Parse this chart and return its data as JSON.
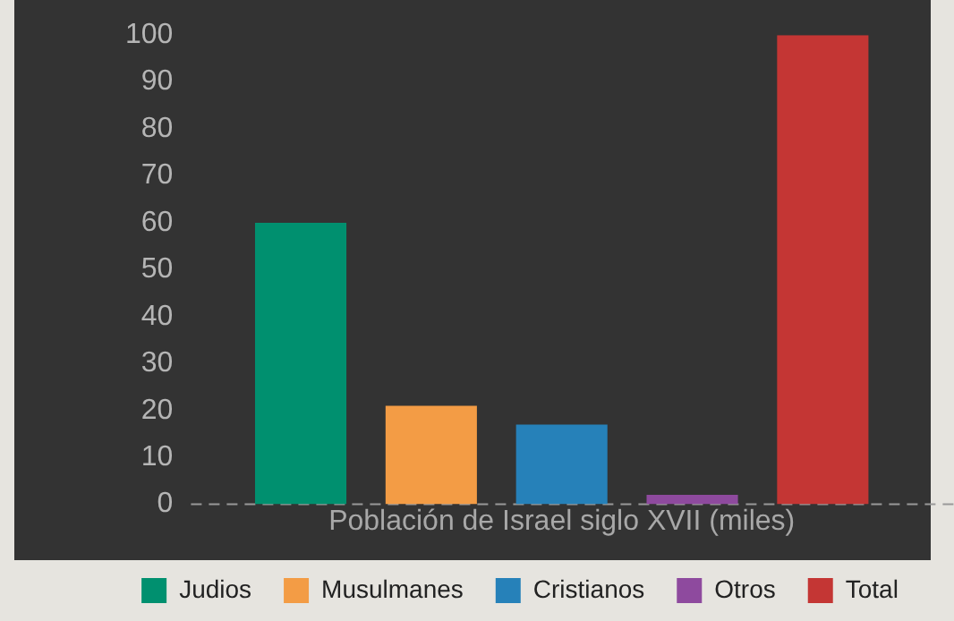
{
  "chart_data": {
    "type": "bar",
    "xlabel": "Población de Israel siglo XVII (miles)",
    "categories": [
      null
    ],
    "series": [
      {
        "name": "Judios",
        "color": "#00906f",
        "values": [
          60
        ]
      },
      {
        "name": "Musulmanes",
        "color": "#f39c45",
        "values": [
          21
        ]
      },
      {
        "name": "Cristianos",
        "color": "#2681b9",
        "values": [
          17
        ]
      },
      {
        "name": "Otros",
        "color": "#8e4a9e",
        "values": [
          2
        ]
      },
      {
        "name": "Total",
        "color": "#c43634",
        "values": [
          100
        ]
      }
    ],
    "ylim": [
      0,
      100
    ],
    "yticks": [
      0,
      10,
      20,
      30,
      40,
      50,
      60,
      70,
      80,
      90,
      100
    ],
    "grid": false,
    "legend": "bottom",
    "ref_lines": [
      {
        "axis": "y",
        "value": 0,
        "line_style": "dashed",
        "color": "#999999"
      }
    ]
  }
}
